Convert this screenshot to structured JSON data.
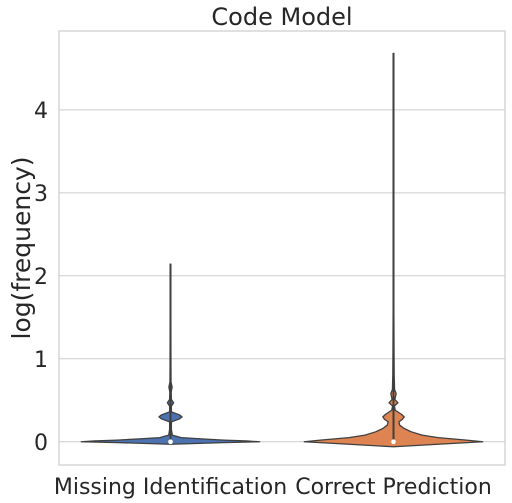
{
  "chart_data": {
    "type": "violin",
    "title": "Code Model",
    "xlabel": "",
    "ylabel": "log(frequency)",
    "ylim": [
      -0.28,
      4.95
    ],
    "yticks": [
      0,
      1,
      2,
      3,
      4
    ],
    "ytick_labels": [
      "0",
      "1",
      "2",
      "3",
      "4"
    ],
    "grid": "horizontal",
    "legend": "none",
    "categories": [
      "Missing Identification",
      "Correct Prediction"
    ],
    "series": [
      {
        "category": "Missing Identification",
        "color": "#4c72b0",
        "min": 0,
        "max": 2.14,
        "q1": 0,
        "median": 0,
        "q3": 0,
        "density": [
          [
            -0.03,
            0.005
          ],
          [
            -0.01,
            0.6
          ],
          [
            0.0,
            1.0
          ],
          [
            0.01,
            0.85
          ],
          [
            0.02,
            0.6
          ],
          [
            0.035,
            0.35
          ],
          [
            0.05,
            0.12
          ],
          [
            0.08,
            0.02
          ],
          [
            0.15,
            0.01
          ],
          [
            0.24,
            0.01
          ],
          [
            0.275,
            0.1
          ],
          [
            0.3,
            0.13
          ],
          [
            0.325,
            0.1
          ],
          [
            0.36,
            0.01
          ],
          [
            0.43,
            0.01
          ],
          [
            0.47,
            0.035
          ],
          [
            0.51,
            0.01
          ],
          [
            0.6,
            0.008
          ],
          [
            0.66,
            0.018
          ],
          [
            0.72,
            0.006
          ],
          [
            0.9,
            0.005
          ],
          [
            1.5,
            0.004
          ],
          [
            2.14,
            0.004
          ]
        ]
      },
      {
        "category": "Correct Prediction",
        "color": "#dd8452",
        "min": 0,
        "max": 4.68,
        "q1": 0,
        "median": 0,
        "q3": 0,
        "density": [
          [
            -0.06,
            0.005
          ],
          [
            -0.03,
            0.5
          ],
          [
            0.0,
            1.0
          ],
          [
            0.02,
            0.82
          ],
          [
            0.05,
            0.5
          ],
          [
            0.08,
            0.32
          ],
          [
            0.12,
            0.2
          ],
          [
            0.16,
            0.12
          ],
          [
            0.2,
            0.07
          ],
          [
            0.24,
            0.06
          ],
          [
            0.27,
            0.1
          ],
          [
            0.3,
            0.12
          ],
          [
            0.33,
            0.09
          ],
          [
            0.38,
            0.02
          ],
          [
            0.43,
            0.01
          ],
          [
            0.47,
            0.05
          ],
          [
            0.51,
            0.015
          ],
          [
            0.58,
            0.03
          ],
          [
            0.63,
            0.012
          ],
          [
            0.8,
            0.008
          ],
          [
            1.1,
            0.006
          ],
          [
            1.6,
            0.004
          ],
          [
            3.0,
            0.004
          ],
          [
            4.68,
            0.004
          ]
        ]
      }
    ]
  }
}
